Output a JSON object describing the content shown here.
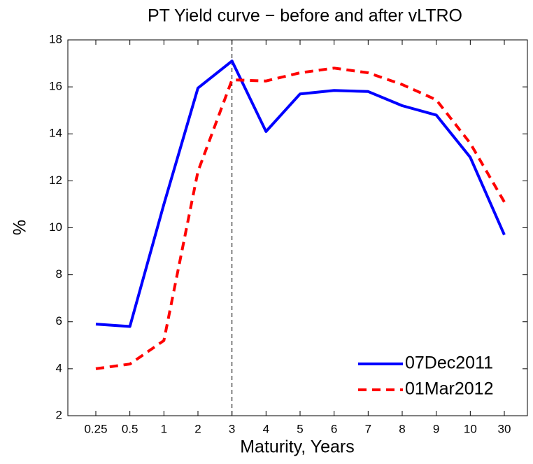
{
  "chart_data": {
    "type": "line",
    "title": "PT Yield curve − before and after vLTRO",
    "x_label": "Maturity, Years",
    "y_label": "%",
    "categories": [
      "0.25",
      "0.5",
      "1",
      "2",
      "3",
      "4",
      "5",
      "6",
      "7",
      "8",
      "9",
      "10",
      "30"
    ],
    "series": [
      {
        "name": "07Dec2011",
        "color": "#0000ff",
        "style": "solid",
        "values": [
          5.9,
          5.8,
          11.0,
          15.95,
          17.1,
          14.1,
          15.7,
          15.85,
          15.8,
          15.2,
          14.8,
          13.0,
          9.7
        ]
      },
      {
        "name": "01Mar2012",
        "color": "#ff0000",
        "style": "dashed",
        "values": [
          4.0,
          4.2,
          5.2,
          12.4,
          16.3,
          16.25,
          16.6,
          16.8,
          16.6,
          16.1,
          15.45,
          13.6,
          11.1
        ]
      }
    ],
    "reference_line": {
      "category": "3",
      "style": "dashed"
    },
    "ylim": [
      2,
      18
    ],
    "yticks": [
      2,
      4,
      6,
      8,
      10,
      12,
      14,
      16,
      18
    ],
    "legend": "lower right",
    "grid": false
  }
}
